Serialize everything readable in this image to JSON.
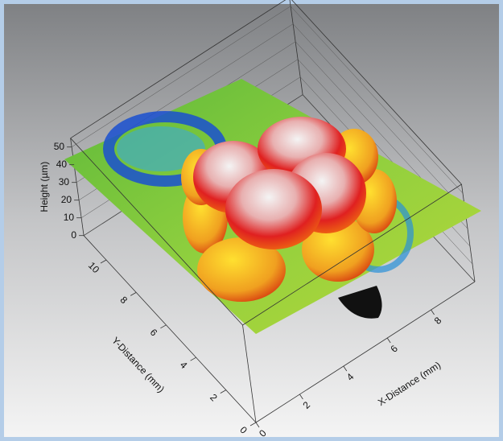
{
  "chart_data": {
    "type": "surface",
    "zlabel": "Height (µm)",
    "ylabel": "Y-Distance (mm)",
    "xlabel": "X-Distance (mm)",
    "xlim": [
      0,
      10
    ],
    "ylim": [
      0,
      11.5
    ],
    "zlim": [
      0,
      55
    ],
    "xticks": [
      0,
      2,
      4,
      6,
      8
    ],
    "yticks": [
      0,
      2,
      4,
      6,
      8,
      10
    ],
    "zticks": [
      0,
      10,
      20,
      30,
      40,
      50
    ],
    "grid": true
  }
}
